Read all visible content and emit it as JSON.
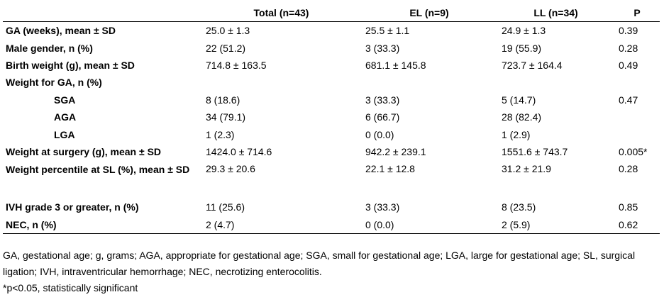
{
  "table": {
    "headers": [
      "",
      "Total (n=43)",
      "EL (n=9)",
      "LL (n=34)",
      "P"
    ],
    "rows": [
      {
        "label": "GA (weeks), mean ± SD",
        "indent": false,
        "cells": [
          "25.0 ± 1.3",
          "25.5 ± 1.1",
          "24.9 ± 1.3",
          "0.39"
        ]
      },
      {
        "label": "Male gender, n (%)",
        "indent": false,
        "cells": [
          "22 (51.2)",
          "3 (33.3)",
          "19 (55.9)",
          "0.28"
        ]
      },
      {
        "label": "Birth weight (g), mean ± SD",
        "indent": false,
        "cells": [
          "714.8 ± 163.5",
          "681.1 ± 145.8",
          "723.7 ± 164.4",
          "0.49"
        ]
      },
      {
        "label": "Weight for GA, n (%)",
        "indent": false,
        "cells": [
          "",
          "",
          "",
          ""
        ]
      },
      {
        "label": "SGA",
        "indent": true,
        "cells": [
          "8 (18.6)",
          "3 (33.3)",
          "5 (14.7)",
          "0.47"
        ]
      },
      {
        "label": "AGA",
        "indent": true,
        "cells": [
          "34 (79.1)",
          "6 (66.7)",
          "28 (82.4)",
          ""
        ]
      },
      {
        "label": "LGA",
        "indent": true,
        "cells": [
          "1 (2.3)",
          "0 (0.0)",
          "1 (2.9)",
          ""
        ]
      },
      {
        "label": "Weight at surgery (g), mean ± SD",
        "indent": false,
        "cells": [
          "1424.0 ± 714.6",
          "942.2 ± 239.1",
          "1551.6 ± 743.7",
          "0.005*"
        ]
      },
      {
        "label": "Weight percentile at SL (%), mean ± SD",
        "indent": false,
        "wrap": true,
        "cells": [
          "29.3 ± 20.6",
          "22.1 ± 12.8",
          "31.2 ± 21.9",
          "0.28"
        ]
      },
      {
        "label": "IVH grade 3 or greater, n (%)",
        "indent": false,
        "cells": [
          "11 (25.6)",
          "3 (33.3)",
          "8 (23.5)",
          "0.85"
        ]
      },
      {
        "label": "NEC, n (%)",
        "indent": false,
        "cells": [
          "2 (4.7)",
          "0 (0.0)",
          "2 (5.9)",
          "0.62"
        ]
      }
    ]
  },
  "footnotes": {
    "abbreviations": "GA, gestational age; g, grams; AGA, appropriate for gestational age; SGA, small for gestational age; LGA, large for gestational age; SL, surgical ligation; IVH, intraventricular hemorrhage; NEC, necrotizing enterocolitis.",
    "significance": "*p<0.05, statistically significant"
  }
}
